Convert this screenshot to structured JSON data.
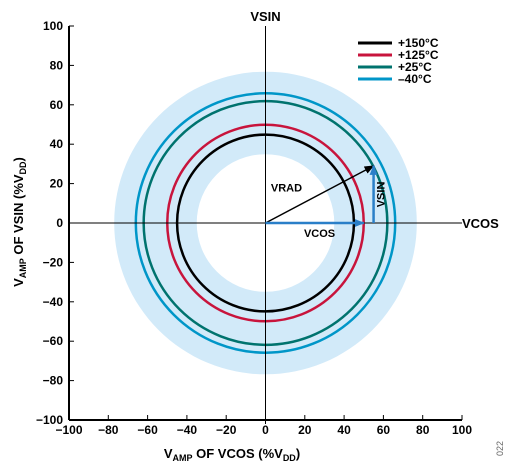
{
  "chart_data": {
    "type": "scatter",
    "xlim": [
      -100,
      100
    ],
    "ylim": [
      -100,
      100
    ],
    "xticks": [
      -100,
      -80,
      -60,
      -40,
      -20,
      0,
      20,
      40,
      60,
      80,
      100
    ],
    "yticks": [
      -100,
      -80,
      -60,
      -40,
      -20,
      0,
      20,
      40,
      60,
      80,
      100
    ],
    "xlabel": {
      "main": "V",
      "sub": "AMP",
      "mid": " OF VCOS (%V",
      "sub2": "DD",
      "end": ")"
    },
    "ylabel": {
      "main": "V",
      "sub": "AMP",
      "mid": " OF VSIN (%V",
      "sub2": "DD",
      "end": ")"
    },
    "grid": false,
    "legend_position": "top-right",
    "series": [
      {
        "name": "+150°C",
        "radius": 45,
        "color": "#000000"
      },
      {
        "name": "+125°C",
        "radius": 50,
        "color": "#c8143c"
      },
      {
        "name": "+25°C",
        "radius": 62,
        "color": "#00736e"
      },
      {
        "name": "–40°C",
        "radius": 66,
        "color": "#0096c8"
      }
    ],
    "band": {
      "inner_radius": 35,
      "outer_radius": 77,
      "color": "#d2eaf9"
    },
    "axis_labels": {
      "vsin": "VSIN",
      "vcos": "VCOS"
    },
    "vectors": {
      "vrad": {
        "label": "VRAD",
        "x": 55,
        "y": 29,
        "color": "#000000"
      },
      "vcos": {
        "label": "VCOS",
        "x": 50,
        "y": 0,
        "color": "#2a7fc8"
      },
      "vsin": {
        "label": "VSIN",
        "x": 55,
        "y": 29,
        "color": "#2a7fc8"
      }
    },
    "figure_number": "022"
  }
}
